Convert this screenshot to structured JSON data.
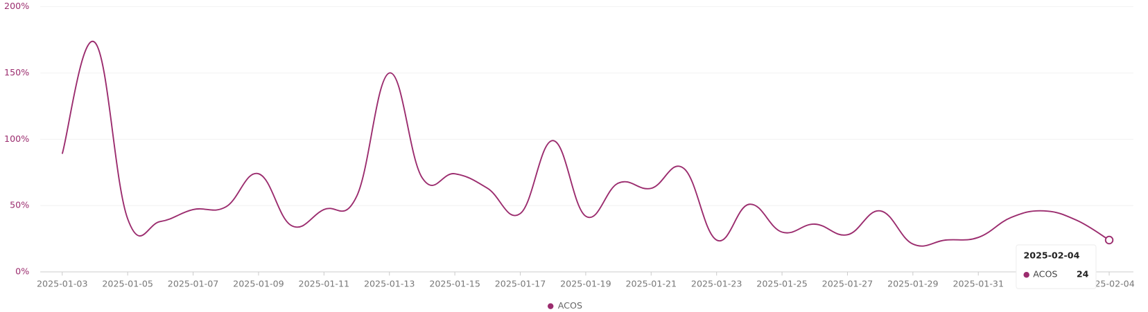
{
  "chart_data": {
    "type": "line",
    "x": [
      "2025-01-03",
      "2025-01-04",
      "2025-01-05",
      "2025-01-06",
      "2025-01-07",
      "2025-01-08",
      "2025-01-09",
      "2025-01-10",
      "2025-01-11",
      "2025-01-12",
      "2025-01-13",
      "2025-01-14",
      "2025-01-15",
      "2025-01-16",
      "2025-01-17",
      "2025-01-18",
      "2025-01-19",
      "2025-01-20",
      "2025-01-21",
      "2025-01-22",
      "2025-01-23",
      "2025-01-24",
      "2025-01-25",
      "2025-01-26",
      "2025-01-27",
      "2025-01-28",
      "2025-01-29",
      "2025-01-30",
      "2025-01-31",
      "2025-02-01",
      "2025-02-02",
      "2025-02-03",
      "2025-02-04"
    ],
    "series": [
      {
        "name": "ACOS",
        "color": "#9b2c6e",
        "values": [
          89,
          173,
          40,
          38,
          47,
          49,
          74,
          35,
          47,
          57,
          150,
          71,
          74,
          63,
          44,
          99,
          42,
          67,
          63,
          78,
          24,
          51,
          30,
          36,
          28,
          46,
          21,
          24,
          26,
          41,
          46,
          39,
          24
        ]
      }
    ],
    "ylim": [
      0,
      200
    ],
    "yticks": [
      {
        "value": 0,
        "label": "0%"
      },
      {
        "value": 50,
        "label": "50%"
      },
      {
        "value": 100,
        "label": "100%"
      },
      {
        "value": 150,
        "label": "150%"
      },
      {
        "value": 200,
        "label": "200%"
      }
    ],
    "grid": true,
    "legend": "bottom",
    "tooltip": {
      "index": 32
    }
  }
}
